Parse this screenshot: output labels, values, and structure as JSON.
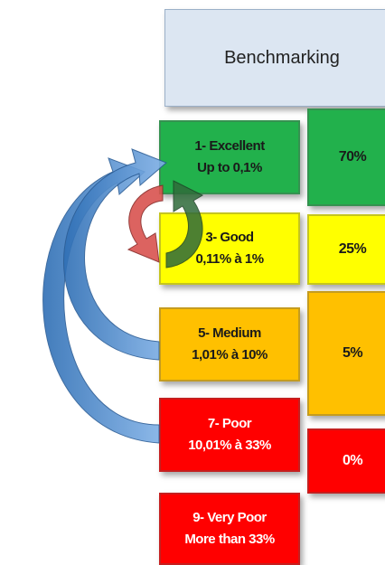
{
  "header": {
    "title": "Benchmarking"
  },
  "levels": [
    {
      "title": "1- Excellent",
      "range": "Up to 0,1%"
    },
    {
      "title": "3- Good",
      "range": "0,11% à 1%"
    },
    {
      "title": "5- Medium",
      "range": "1,01% à 10%"
    },
    {
      "title": "7- Poor",
      "range": "10,01% à  33%"
    },
    {
      "title": "9- Very Poor",
      "range": "More than 33%"
    }
  ],
  "shares": [
    "70%",
    "25%",
    "5%",
    "0%"
  ]
}
